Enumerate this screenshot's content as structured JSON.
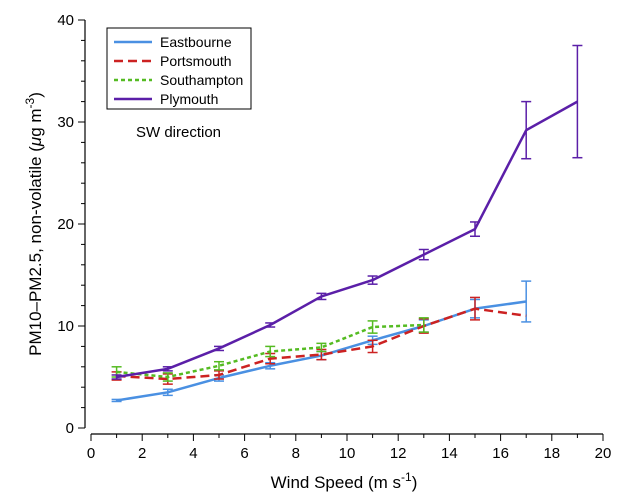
{
  "chart_data": {
    "type": "line",
    "xlabel": "Wind Speed (m s",
    "xlabel_sup": "-1",
    "xlabel_end": ")",
    "ylabel": "PM10–PM2.5, non-volatile (",
    "ylabel_mu": "μ",
    "ylabel_unit": "g m",
    "ylabel_sup": "-3",
    "ylabel_end": ")",
    "xlim": [
      0,
      20
    ],
    "ylim": [
      0,
      40
    ],
    "xticks": [
      0,
      2,
      4,
      6,
      8,
      10,
      12,
      14,
      16,
      18,
      20
    ],
    "yticks": [
      0,
      10,
      20,
      30,
      40
    ],
    "grid": false,
    "legend": "top-left",
    "annotation": "SW direction",
    "series": [
      {
        "name": "Eastbourne",
        "color": "#4a90e2",
        "style": "solid",
        "x": [
          1,
          3,
          5,
          7,
          9,
          11,
          13,
          15,
          17
        ],
        "y": [
          2.7,
          3.5,
          4.9,
          6.1,
          7.1,
          8.6,
          10.0,
          11.7,
          12.4
        ],
        "err": [
          0.1,
          0.3,
          0.3,
          0.3,
          0.4,
          0.4,
          0.6,
          0.9,
          2.0
        ]
      },
      {
        "name": "Portsmouth",
        "color": "#cc2222",
        "style": "dashed",
        "x": [
          1,
          3,
          5,
          7,
          9,
          11,
          13,
          15,
          17
        ],
        "y": [
          5.1,
          4.8,
          5.2,
          6.8,
          7.2,
          8.0,
          10.0,
          11.7,
          11.0
        ],
        "err": [
          0.4,
          0.5,
          0.4,
          0.5,
          0.5,
          0.6,
          0.7,
          1.1,
          0.0
        ]
      },
      {
        "name": "Southampton",
        "color": "#55bb22",
        "style": "dotted",
        "x": [
          1,
          3,
          5,
          7,
          9,
          11,
          13
        ],
        "y": [
          5.5,
          5.0,
          6.1,
          7.5,
          7.9,
          9.9,
          10.1
        ],
        "err": [
          0.5,
          0.4,
          0.4,
          0.5,
          0.4,
          0.6,
          0.7
        ]
      },
      {
        "name": "Plymouth",
        "color": "#5b1fa8",
        "style": "solid",
        "x": [
          1,
          3,
          5,
          7,
          9,
          11,
          13,
          15,
          17,
          19
        ],
        "y": [
          5.0,
          5.8,
          7.8,
          10.1,
          12.9,
          14.5,
          17.0,
          19.5,
          29.2,
          32.0
        ],
        "err": [
          0.2,
          0.2,
          0.2,
          0.2,
          0.3,
          0.4,
          0.5,
          0.7,
          2.8,
          5.5
        ]
      }
    ]
  }
}
